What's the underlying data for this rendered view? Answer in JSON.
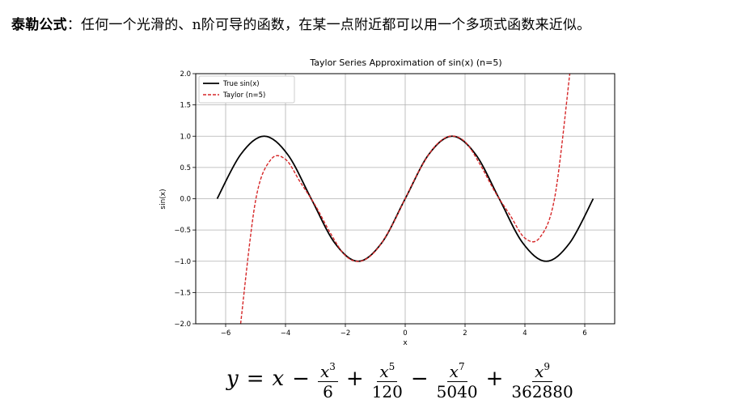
{
  "intro": {
    "term": "泰勒公式",
    "sep": "：",
    "text": "任何一个光滑的、n阶可导的函数，在某一点附近都可以用一个多项式函数来近似。"
  },
  "chart_data": {
    "type": "line",
    "title": "Taylor Series Approximation of sin(x) (n=5)",
    "xlabel": "x",
    "ylabel": "sin(x)",
    "xlim": [
      -7,
      7
    ],
    "ylim": [
      -2.0,
      2.0
    ],
    "x_ticks": [
      -6,
      -4,
      -2,
      0,
      2,
      4,
      6
    ],
    "y_ticks": [
      -2.0,
      -1.5,
      -1.0,
      -0.5,
      0.0,
      0.5,
      1.0,
      1.5,
      2.0
    ],
    "x_tick_labels": [
      "−6",
      "−4",
      "−2",
      "0",
      "2",
      "4",
      "6"
    ],
    "y_tick_labels": [
      "−2.0",
      "−1.5",
      "−1.0",
      "−0.5",
      "0.0",
      "0.5",
      "1.0",
      "1.5",
      "2.0"
    ],
    "grid": true,
    "legend_position": "top-left",
    "series": [
      {
        "name": "True sin(x)",
        "color": "#000000",
        "style": "solid",
        "x": [
          -6.283,
          -5.498,
          -4.712,
          -3.927,
          -3.142,
          -2.356,
          -1.571,
          -0.785,
          0.0,
          0.785,
          1.571,
          2.356,
          3.142,
          3.927,
          4.712,
          5.498,
          6.283
        ],
        "y": [
          0.0,
          0.707,
          1.0,
          0.707,
          0.0,
          -0.707,
          -1.0,
          -0.707,
          0.0,
          0.707,
          1.0,
          0.707,
          0.0,
          -0.707,
          -1.0,
          -0.707,
          0.0
        ]
      },
      {
        "name": "Taylor (n=5)",
        "color": "#d62728",
        "style": "dashed",
        "x": [
          -5.5,
          -5.0,
          -4.5,
          -4.0,
          -3.5,
          -3.0,
          -2.5,
          -2.0,
          -1.5,
          -1.0,
          -0.5,
          0.0,
          0.5,
          1.0,
          1.5,
          2.0,
          2.5,
          3.0,
          3.5,
          4.0,
          4.5,
          5.0,
          5.5
        ],
        "y": [
          -2.0,
          -0.03,
          0.62,
          0.63,
          0.26,
          -0.11,
          -0.55,
          -0.91,
          -1.0,
          -0.84,
          -0.48,
          0.0,
          0.48,
          0.84,
          1.0,
          0.91,
          0.55,
          0.11,
          -0.26,
          -0.63,
          -0.62,
          0.03,
          2.0
        ]
      }
    ]
  },
  "formula": {
    "lhs": "y",
    "eq": "=",
    "x": "x",
    "minus1": "−",
    "num": "x",
    "exp3": "3",
    "den3": "6",
    "plus1": "+",
    "exp5": "5",
    "den5": "120",
    "minus2": "−",
    "exp7": "7",
    "den7": "5040",
    "plus2": "+",
    "exp9": "9",
    "den9": "362880"
  }
}
